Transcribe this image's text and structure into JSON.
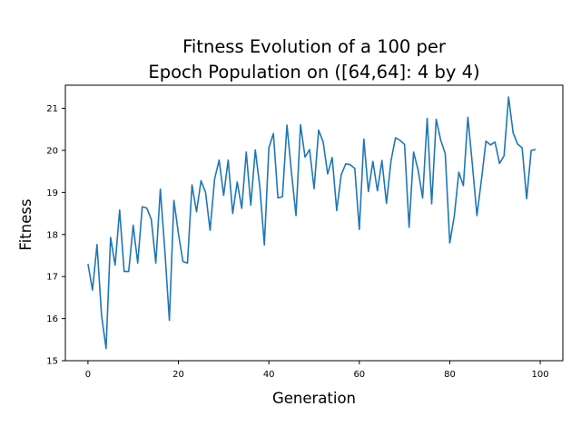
{
  "chart_data": {
    "type": "line",
    "title_lines": [
      "Fitness Evolution of a 100 per",
      "Epoch Population on ([64,64]: 4 by 4)"
    ],
    "xlabel": "Generation",
    "ylabel": "Fitness",
    "xlim": [
      -5,
      105
    ],
    "ylim": [
      15.0,
      21.55
    ],
    "xticks": [
      0,
      20,
      40,
      60,
      80,
      100
    ],
    "yticks": [
      15,
      16,
      17,
      18,
      19,
      20,
      21
    ],
    "grid": false,
    "line_color": "#1f77b4",
    "series": [
      {
        "x": [
          0,
          1,
          2,
          3,
          4,
          5,
          6,
          7,
          8,
          9,
          10,
          11,
          12,
          13,
          14,
          15,
          16,
          17,
          18,
          19,
          20,
          21,
          22,
          23,
          24,
          25,
          26,
          27,
          28,
          29,
          30,
          31,
          32,
          33,
          34,
          35,
          36,
          37,
          38,
          39,
          40,
          41,
          42,
          43,
          44,
          45,
          46,
          47,
          48,
          49,
          50,
          51,
          52,
          53,
          54,
          55,
          56,
          57,
          58,
          59,
          60,
          61,
          62,
          63,
          64,
          65,
          66,
          67,
          68,
          69,
          70,
          71,
          72,
          73,
          74,
          75,
          76,
          77,
          78,
          79,
          80,
          81,
          82,
          83,
          84,
          85,
          86,
          87,
          88,
          89,
          90,
          91,
          92,
          93,
          94,
          95,
          96,
          97,
          98,
          99
        ],
        "y": [
          17.3,
          16.68,
          17.76,
          16.08,
          15.29,
          17.93,
          17.27,
          18.58,
          17.12,
          17.12,
          18.22,
          17.32,
          18.66,
          18.63,
          18.36,
          17.32,
          19.08,
          17.61,
          15.96,
          18.81,
          18.02,
          17.36,
          17.32,
          19.18,
          18.54,
          19.28,
          19.0,
          18.1,
          19.32,
          19.77,
          18.93,
          19.77,
          18.5,
          19.25,
          18.62,
          19.96,
          18.7,
          20.01,
          19.13,
          17.75,
          20.06,
          20.4,
          18.87,
          18.9,
          20.6,
          19.47,
          18.45,
          20.61,
          19.84,
          20.02,
          19.09,
          20.48,
          20.2,
          19.44,
          19.83,
          18.57,
          19.42,
          19.68,
          19.66,
          19.57,
          18.12,
          20.27,
          19.02,
          19.74,
          19.04,
          19.76,
          18.74,
          19.75,
          20.3,
          20.24,
          20.14,
          18.17,
          19.96,
          19.53,
          18.87,
          20.76,
          18.73,
          20.74,
          20.24,
          19.92,
          17.8,
          18.44,
          19.48,
          19.16,
          20.79,
          19.66,
          18.45,
          19.3,
          20.22,
          20.13,
          20.2,
          19.69,
          19.87,
          21.27,
          20.42,
          20.15,
          20.06,
          18.85,
          20.0,
          20.02
        ]
      }
    ]
  }
}
